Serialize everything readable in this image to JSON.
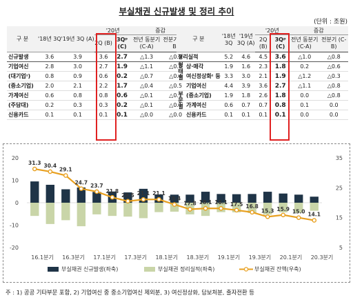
{
  "title": "부실채권 신규발생 및 정리 추이",
  "unit": "(단위 : 조원)",
  "left_table": {
    "header_group_label": "구   분",
    "header_20_label": "'20년",
    "header_change_label": "증감",
    "columns": [
      "'18년 3Q",
      "'19년 3Q (A)",
      "2Q (B)",
      "3Qᵖ (C)",
      "전년 동분기 (C-A)",
      "전분기 (C-B)"
    ],
    "rows": [
      {
        "label": "신규발생",
        "values": [
          "3.6",
          "3.9",
          "3.6",
          "2.7",
          "△1.3",
          "△0.9"
        ]
      },
      {
        "label": "기업여신",
        "values": [
          "2.8",
          "3.0",
          "2.7",
          "1.9",
          "△1.1",
          "△0.8"
        ]
      },
      {
        "label": "(대기업ᶦ)",
        "values": [
          "0.8",
          "0.9",
          "0.6",
          "0.2",
          "△0.7",
          "△0.4"
        ]
      },
      {
        "label": "(중소기업)",
        "values": [
          "2.0",
          "2.1",
          "2.2",
          "1.7",
          "△0.4",
          "△0.5"
        ]
      },
      {
        "label": "가계여신",
        "values": [
          "0.6",
          "0.8",
          "0.8",
          "0.6",
          "△0.1",
          "△0.1"
        ]
      },
      {
        "label": "(주담대)",
        "values": [
          "0.2",
          "0.3",
          "0.3",
          "0.2",
          "△0.1",
          "△0.1"
        ]
      },
      {
        "label": "신용카드",
        "values": [
          "0.1",
          "0.1",
          "0.1",
          "0.1",
          "△0.0",
          "△0.0"
        ]
      }
    ]
  },
  "right_table": {
    "header_group_label": "구   분",
    "header_20_label": "'20년",
    "header_change_label": "증감",
    "group_type": "형태별",
    "group_sector": "부문별",
    "columns": [
      "'18년 3Q",
      "'19년 3Q (A)",
      "2Q (B)",
      "3Qᵖ (C)",
      "전년 동분기 (C-A)",
      "전분기 (C-B)"
    ],
    "rows": [
      {
        "label": "정리실적",
        "values": [
          "5.2",
          "4.6",
          "4.5",
          "3.6",
          "△1.0",
          "△0.8"
        ]
      },
      {
        "label": "상·매각",
        "values": [
          "1.9",
          "1.6",
          "2.3",
          "1.8",
          "0.2",
          "△0.6"
        ]
      },
      {
        "label": "여신정상화ᶦ 등",
        "values": [
          "3.3",
          "3.0",
          "2.1",
          "1.9",
          "△1.2",
          "△0.3"
        ]
      },
      {
        "label": "기업여신",
        "values": [
          "4.4",
          "3.9",
          "3.6",
          "2.7",
          "△1.1",
          "△0.8"
        ]
      },
      {
        "label": "(중소기업)",
        "values": [
          "1.9",
          "1.8",
          "2.6",
          "1.8",
          "0.0",
          "△0.8"
        ]
      },
      {
        "label": "가계여신",
        "values": [
          "0.6",
          "0.7",
          "0.7",
          "0.8",
          "0.1",
          "0.0"
        ]
      },
      {
        "label": "신용카드",
        "values": [
          "0.1",
          "0.1",
          "0.1",
          "0.1",
          "0.0",
          "0.0"
        ]
      }
    ]
  },
  "chart_data": {
    "type": "bar",
    "categories": [
      "16.1분기",
      "16.2분기",
      "16.3분기",
      "16.4분기",
      "17.1분기",
      "17.2분기",
      "17.3분기",
      "17.4분기",
      "18.1분기",
      "18.2분기",
      "18.3분기",
      "18.4분기",
      "19.1분기",
      "19.2분기",
      "19.3분기",
      "19.4분기",
      "20.1분기",
      "20.2분기",
      "20.3분기"
    ],
    "x_tick_labels": [
      "16.1분기",
      "16.3분기",
      "17.1분기",
      "17.3분기",
      "18.1분기",
      "18.3분기",
      "19.1분기",
      "19.3분기",
      "20.1분기",
      "20.3분기"
    ],
    "series": [
      {
        "name": "부실채권 신규발생(좌축)",
        "type": "bar",
        "axis": "left",
        "color": "#1f3447",
        "values": [
          9.5,
          8.0,
          6.0,
          6.8,
          4.8,
          5.0,
          4.6,
          6.2,
          3.7,
          3.6,
          3.6,
          4.9,
          3.9,
          3.8,
          3.9,
          4.9,
          4.1,
          3.6,
          2.7
        ]
      },
      {
        "name": "부실채권 정리실적(좌축)",
        "type": "bar",
        "axis": "left",
        "color": "#c9d5a8",
        "values": [
          -5.9,
          -9.5,
          -7.8,
          -10.5,
          -5.2,
          -5.9,
          -6.2,
          -6.9,
          -4.2,
          -4.0,
          -5.2,
          -5.9,
          -4.2,
          -4.3,
          -4.6,
          -5.3,
          -4.3,
          -4.5,
          -3.6
        ]
      },
      {
        "name": "부실채권 잔액(우축)",
        "type": "line",
        "axis": "right",
        "color": "#e8a020",
        "values": [
          31.3,
          30.4,
          29.1,
          24.7,
          23.7,
          21.8,
          20.5,
          21.1,
          21.1,
          19.4,
          17.8,
          18.1,
          18.1,
          17.5,
          16.8,
          15.3,
          15.9,
          15.0,
          14.1
        ]
      }
    ],
    "left_axis": {
      "ylim": [
        -20,
        20
      ],
      "ticks": [
        "20",
        "10",
        "0",
        "-10",
        "-20"
      ]
    },
    "right_axis": {
      "ylim": [
        5,
        35
      ],
      "ticks": [
        "35",
        "25",
        "15",
        "5"
      ]
    },
    "legend_position": "bottom",
    "grid": false
  },
  "footnote": "주 : 1) 공공 기타부문 포함, 2) 기업여신 중 중소기업여신 제외분, 3) 여신정상화, 담보처분, 출자전환 등"
}
